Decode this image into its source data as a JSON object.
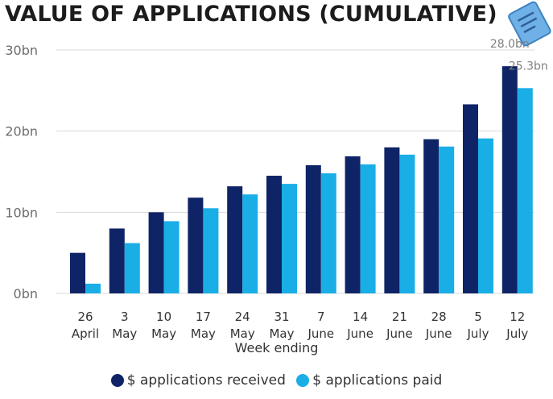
{
  "title": "VALUE OF APPLICATIONS (CUMULATIVE)",
  "icon": "document-icon",
  "colors": {
    "received": "#0f2466",
    "paid": "#1aaee6",
    "grid": "#d9d9d9",
    "tick": "#6d6d6d"
  },
  "chart_data": {
    "type": "bar",
    "title": "VALUE OF APPLICATIONS (CUMULATIVE)",
    "xlabel": "Week ending",
    "ylabel": "",
    "ylim": [
      0,
      30
    ],
    "yticks": [
      {
        "value": 0,
        "label": "0bn"
      },
      {
        "value": 10,
        "label": "10bn"
      },
      {
        "value": 20,
        "label": "20bn"
      },
      {
        "value": 30,
        "label": "30bn"
      }
    ],
    "categories": [
      [
        "26",
        "April"
      ],
      [
        "3",
        "May"
      ],
      [
        "10",
        "May"
      ],
      [
        "17",
        "May"
      ],
      [
        "24",
        "May"
      ],
      [
        "31",
        "May"
      ],
      [
        "7",
        "June"
      ],
      [
        "14",
        "June"
      ],
      [
        "21",
        "June"
      ],
      [
        "28",
        "June"
      ],
      [
        "5",
        "July"
      ],
      [
        "12",
        "July"
      ]
    ],
    "series": [
      {
        "name": "$ applications received",
        "values": [
          5.0,
          8.0,
          10.0,
          11.8,
          13.2,
          14.5,
          15.8,
          16.9,
          18.0,
          19.0,
          23.3,
          28.0
        ]
      },
      {
        "name": "$ applications paid",
        "values": [
          1.2,
          6.2,
          8.9,
          10.5,
          12.2,
          13.5,
          14.8,
          15.9,
          17.1,
          18.1,
          19.1,
          25.3
        ]
      }
    ],
    "data_labels": [
      {
        "series": 0,
        "index": 11,
        "text": "28.0bn"
      },
      {
        "series": 1,
        "index": 11,
        "text": "25.3bn"
      }
    ],
    "grid": true,
    "legend_position": "bottom"
  }
}
